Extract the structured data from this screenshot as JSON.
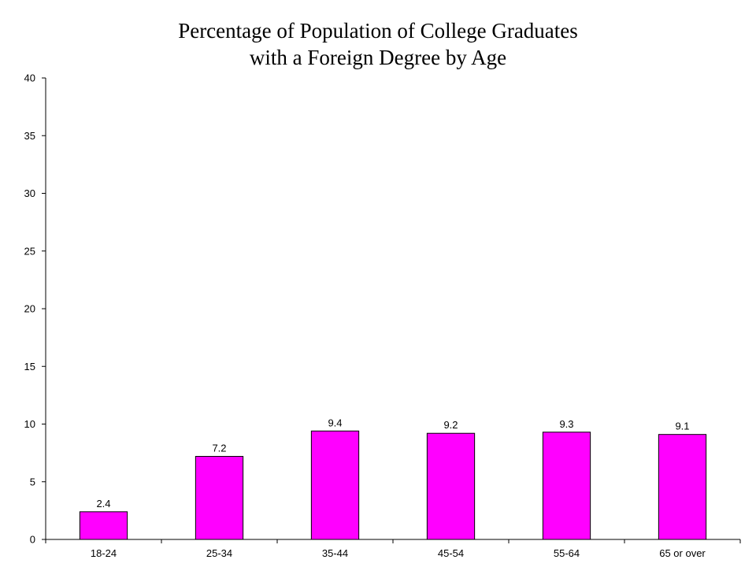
{
  "chart_data": {
    "type": "bar",
    "title_line1": "Percentage of Population of College Graduates",
    "title_line2": "with a Foreign Degree by Age",
    "xlabel": "",
    "ylabel": "",
    "categories": [
      "18-24",
      "25-34",
      "35-44",
      "45-54",
      "55-64",
      "65 or over"
    ],
    "values": [
      2.4,
      7.2,
      9.4,
      9.2,
      9.3,
      9.1
    ],
    "data_labels": [
      "2.4",
      "7.2",
      "9.4",
      "9.2",
      "9.3",
      "9.1"
    ],
    "ylim": [
      0,
      40
    ],
    "yticks": [
      0,
      5,
      10,
      15,
      20,
      25,
      30,
      35,
      40
    ],
    "grid": false,
    "legend": "none",
    "bar_color": "#FF00FF",
    "bar_edge_color": "#000000"
  }
}
